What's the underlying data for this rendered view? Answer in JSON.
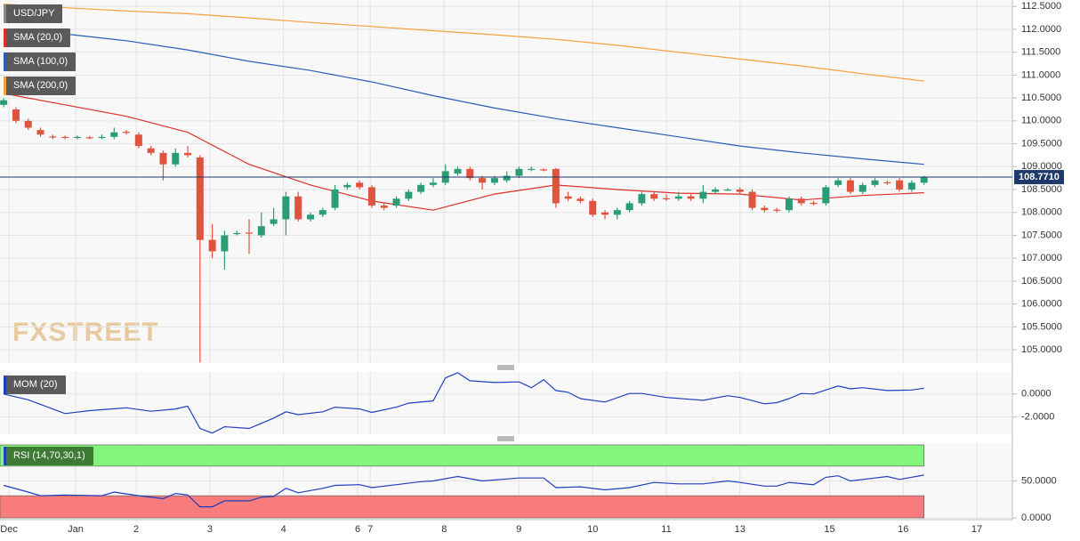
{
  "chart_data": [
    {
      "type": "candlestick",
      "symbol": "USD/JPY",
      "watermark": "FXSTREET",
      "up_color": "#2a9d76",
      "down_color": "#e0533f",
      "xlim": [
        -0.3,
        82.2
      ],
      "xticks": [
        {
          "value": 0.43,
          "label": "Dec"
        },
        {
          "value": 5.86,
          "label": "Jan"
        },
        {
          "value": 10.8,
          "label": "2"
        },
        {
          "value": 16.8,
          "label": "3"
        },
        {
          "value": 22.8,
          "label": "4"
        },
        {
          "value": 28.85,
          "label": "6"
        },
        {
          "value": 29.87,
          "label": "7"
        },
        {
          "value": 35.9,
          "label": "8"
        },
        {
          "value": 41.98,
          "label": "9"
        },
        {
          "value": 48.0,
          "label": "10"
        },
        {
          "value": 54.0,
          "label": "11"
        },
        {
          "value": 60.0,
          "label": "13"
        },
        {
          "value": 67.3,
          "label": "15"
        },
        {
          "value": 73.3,
          "label": "16"
        },
        {
          "value": 79.3,
          "label": "17"
        }
      ],
      "ylim": [
        104.71,
        112.64
      ],
      "yticks": [
        {
          "value": 105,
          "label": "105.0000"
        },
        {
          "value": 105.5,
          "label": "105.5000"
        },
        {
          "value": 106,
          "label": "106.0000"
        },
        {
          "value": 106.5,
          "label": "106.5000"
        },
        {
          "value": 107,
          "label": "107.0000"
        },
        {
          "value": 107.5,
          "label": "107.5000"
        },
        {
          "value": 108,
          "label": "108.0000"
        },
        {
          "value": 108.5,
          "label": "108.5000"
        },
        {
          "value": 109,
          "label": "109.0000"
        },
        {
          "value": 109.5,
          "label": "109.5000"
        },
        {
          "value": 110,
          "label": "110.0000"
        },
        {
          "value": 110.5,
          "label": "110.5000"
        },
        {
          "value": 111,
          "label": "111.0000"
        },
        {
          "value": 111.5,
          "label": "111.5000"
        },
        {
          "value": 112,
          "label": "112.0000"
        },
        {
          "value": 112.5,
          "label": "112.5000"
        }
      ],
      "grid": true,
      "last_price": 108.771,
      "last_price_label": "108.7710",
      "last_price_color": "#1d3a6b",
      "open": [
        110.35,
        110.25,
        110.0,
        109.8,
        109.66,
        109.65,
        109.64,
        109.64,
        109.64,
        109.65,
        109.76,
        109.7,
        109.4,
        109.3,
        109.05,
        109.3,
        109.2,
        107.4,
        107.15,
        107.54,
        107.56,
        107.5,
        107.75,
        107.85,
        108.35,
        107.85,
        107.95,
        108.1,
        108.55,
        108.65,
        108.55,
        108.15,
        108.15,
        108.3,
        108.45,
        108.6,
        108.65,
        108.85,
        108.95,
        108.75,
        108.65,
        108.7,
        108.8,
        108.94,
        108.94,
        108.95,
        108.35,
        108.3,
        108.25,
        108.0,
        107.95,
        108.05,
        108.2,
        108.4,
        108.31,
        108.3,
        108.35,
        108.3,
        108.45,
        108.5,
        108.5,
        108.45,
        108.1,
        108.06,
        108.05,
        108.3,
        108.21,
        108.2,
        108.6,
        108.7,
        108.45,
        108.6,
        108.66,
        108.7,
        108.5,
        108.65
      ],
      "high": [
        110.5,
        110.3,
        110.05,
        109.85,
        109.7,
        109.68,
        109.68,
        109.67,
        109.7,
        109.85,
        109.8,
        109.75,
        109.45,
        109.35,
        109.4,
        109.45,
        109.25,
        107.75,
        107.6,
        107.6,
        107.85,
        108.0,
        108.1,
        108.45,
        108.45,
        108.0,
        108.1,
        108.6,
        108.65,
        108.7,
        108.6,
        108.2,
        108.35,
        108.5,
        108.65,
        108.75,
        109.05,
        109.0,
        109.0,
        108.8,
        108.8,
        108.9,
        109.0,
        109.0,
        108.96,
        108.97,
        108.45,
        108.35,
        108.3,
        108.05,
        108.1,
        108.25,
        108.45,
        108.45,
        108.4,
        108.45,
        108.4,
        108.6,
        108.55,
        108.53,
        108.55,
        108.5,
        108.15,
        108.1,
        108.35,
        108.35,
        108.25,
        108.6,
        108.75,
        108.75,
        108.65,
        108.75,
        108.7,
        108.75,
        108.7,
        108.8
      ],
      "low": [
        110.3,
        109.95,
        109.8,
        109.65,
        109.6,
        109.6,
        109.6,
        109.6,
        109.6,
        109.6,
        109.7,
        109.4,
        109.25,
        108.7,
        109.0,
        109.2,
        104.72,
        107.0,
        106.75,
        107.5,
        107.1,
        107.45,
        107.7,
        107.5,
        107.8,
        107.8,
        107.9,
        108.05,
        108.5,
        108.5,
        108.1,
        108.05,
        108.1,
        108.25,
        108.4,
        108.55,
        108.6,
        108.8,
        108.7,
        108.5,
        108.6,
        108.65,
        108.75,
        108.9,
        108.9,
        108.1,
        108.25,
        108.2,
        107.9,
        107.85,
        107.85,
        108.0,
        108.15,
        108.25,
        108.25,
        108.25,
        108.25,
        108.2,
        108.4,
        108.47,
        108.4,
        108.05,
        108.0,
        108.0,
        108.0,
        108.15,
        108.15,
        108.15,
        108.55,
        108.4,
        108.4,
        108.55,
        108.6,
        108.45,
        108.45,
        108.6
      ],
      "close": [
        110.45,
        110.0,
        109.85,
        109.7,
        109.65,
        109.64,
        109.65,
        109.63,
        109.65,
        109.75,
        109.74,
        109.45,
        109.3,
        109.05,
        109.3,
        109.25,
        107.4,
        107.15,
        107.5,
        107.55,
        107.55,
        107.7,
        107.85,
        108.35,
        107.85,
        107.95,
        108.05,
        108.5,
        108.6,
        108.55,
        108.15,
        108.1,
        108.3,
        108.45,
        108.6,
        108.65,
        108.9,
        108.95,
        108.75,
        108.65,
        108.75,
        108.8,
        108.95,
        108.95,
        108.93,
        108.2,
        108.3,
        108.25,
        107.95,
        107.95,
        108.05,
        108.2,
        108.4,
        108.3,
        108.3,
        108.35,
        108.3,
        108.45,
        108.5,
        108.5,
        108.45,
        108.1,
        108.05,
        108.05,
        108.3,
        108.2,
        108.2,
        108.55,
        108.7,
        108.45,
        108.6,
        108.7,
        108.65,
        108.5,
        108.65,
        108.77
      ],
      "series": [
        {
          "name": "SMA (20,0)",
          "color": "#e0302a",
          "x": [
            0,
            5,
            10,
            15,
            20,
            25,
            30,
            35,
            40,
            45,
            50,
            55,
            60,
            65,
            70,
            75
          ],
          "values": [
            110.6,
            110.35,
            110.1,
            109.75,
            109.05,
            108.6,
            108.25,
            108.05,
            108.4,
            108.6,
            108.5,
            108.42,
            108.4,
            108.27,
            108.37,
            108.43
          ]
        },
        {
          "name": "SMA (100,0)",
          "color": "#2a5cb8",
          "x": [
            0,
            5,
            10,
            15,
            20,
            25,
            30,
            35,
            40,
            45,
            50,
            55,
            60,
            65,
            70,
            75
          ],
          "values": [
            112.0,
            111.9,
            111.75,
            111.55,
            111.3,
            111.1,
            110.85,
            110.55,
            110.28,
            110.05,
            109.85,
            109.65,
            109.45,
            109.3,
            109.17,
            109.05
          ]
        },
        {
          "name": "SMA (200,0)",
          "color": "#f5a03a",
          "x": [
            0,
            5,
            10,
            15,
            20,
            25,
            30,
            35,
            40,
            45,
            50,
            55,
            60,
            65,
            70,
            75
          ],
          "values": [
            112.55,
            112.47,
            112.4,
            112.34,
            112.25,
            112.15,
            112.06,
            111.97,
            111.88,
            111.78,
            111.65,
            111.5,
            111.35,
            111.2,
            111.03,
            110.87
          ]
        }
      ]
    },
    {
      "type": "line",
      "ylim": [
        -3.5,
        1.92
      ],
      "yticks": [
        {
          "value": 0,
          "label": "0.0000"
        },
        {
          "value": -2,
          "label": "-2.0000"
        }
      ],
      "series": [
        {
          "name": "MOM (20)",
          "color": "#1f3fbf",
          "x": [
            0,
            2,
            3,
            5,
            7,
            10,
            12,
            14,
            15,
            16,
            17,
            18,
            20,
            22,
            23,
            24,
            26,
            27,
            29,
            30,
            32,
            33,
            35,
            36,
            37,
            38,
            40,
            42,
            43,
            44,
            45,
            46,
            47,
            49,
            51,
            52,
            54,
            57,
            59,
            60,
            62,
            63,
            64,
            65,
            66,
            68,
            69,
            70,
            72,
            74,
            75
          ],
          "values": [
            0,
            -0.5,
            -0.9,
            -1.7,
            -1.45,
            -1.2,
            -1.5,
            -1.3,
            -1.05,
            -3.0,
            -3.4,
            -2.85,
            -3.0,
            -2.1,
            -1.55,
            -1.8,
            -1.55,
            -1.15,
            -1.3,
            -1.6,
            -1.15,
            -0.8,
            -0.6,
            1.4,
            1.85,
            1.15,
            1.0,
            1.05,
            0.55,
            1.25,
            0.3,
            0.15,
            -0.4,
            -0.7,
            0.05,
            0.05,
            -0.3,
            -0.55,
            -0.15,
            -0.3,
            -0.85,
            -0.75,
            -0.4,
            0.05,
            0,
            0.7,
            0.45,
            0.55,
            0.3,
            0.35,
            0.5
          ]
        }
      ]
    },
    {
      "type": "line",
      "ylim": [
        -2.4,
        101.2
      ],
      "yticks": [
        {
          "value": 0,
          "label": "0.0000"
        },
        {
          "value": 50,
          "label": "50.0000"
        }
      ],
      "overbought": 70,
      "oversold": 30,
      "overbought_color": "#84f57c",
      "oversold_color": "#f97c7c",
      "series": [
        {
          "name": "RSI (14,70,30,1)",
          "color": "#1f3fbf",
          "x": [
            0,
            2,
            3,
            5,
            8,
            9,
            11,
            13,
            14,
            15,
            16,
            17,
            18,
            20,
            21,
            22,
            23,
            24,
            26,
            27,
            29,
            30,
            32,
            34,
            35,
            37,
            39,
            42,
            44,
            45,
            47,
            49,
            51,
            53,
            55,
            57,
            59,
            60,
            62,
            63,
            64,
            66,
            67,
            68,
            69,
            71,
            72,
            73,
            75
          ],
          "values": [
            44,
            35,
            30,
            31,
            30,
            35,
            30,
            26,
            33,
            31,
            15,
            15,
            23,
            23,
            28,
            29,
            40,
            34,
            40,
            44,
            45,
            41,
            45,
            49,
            50,
            56,
            50,
            54,
            54,
            41,
            42,
            38,
            41,
            48,
            46,
            46,
            50,
            48,
            43,
            43,
            48,
            45,
            55,
            57,
            50,
            54,
            56,
            52,
            58
          ]
        }
      ]
    }
  ]
}
